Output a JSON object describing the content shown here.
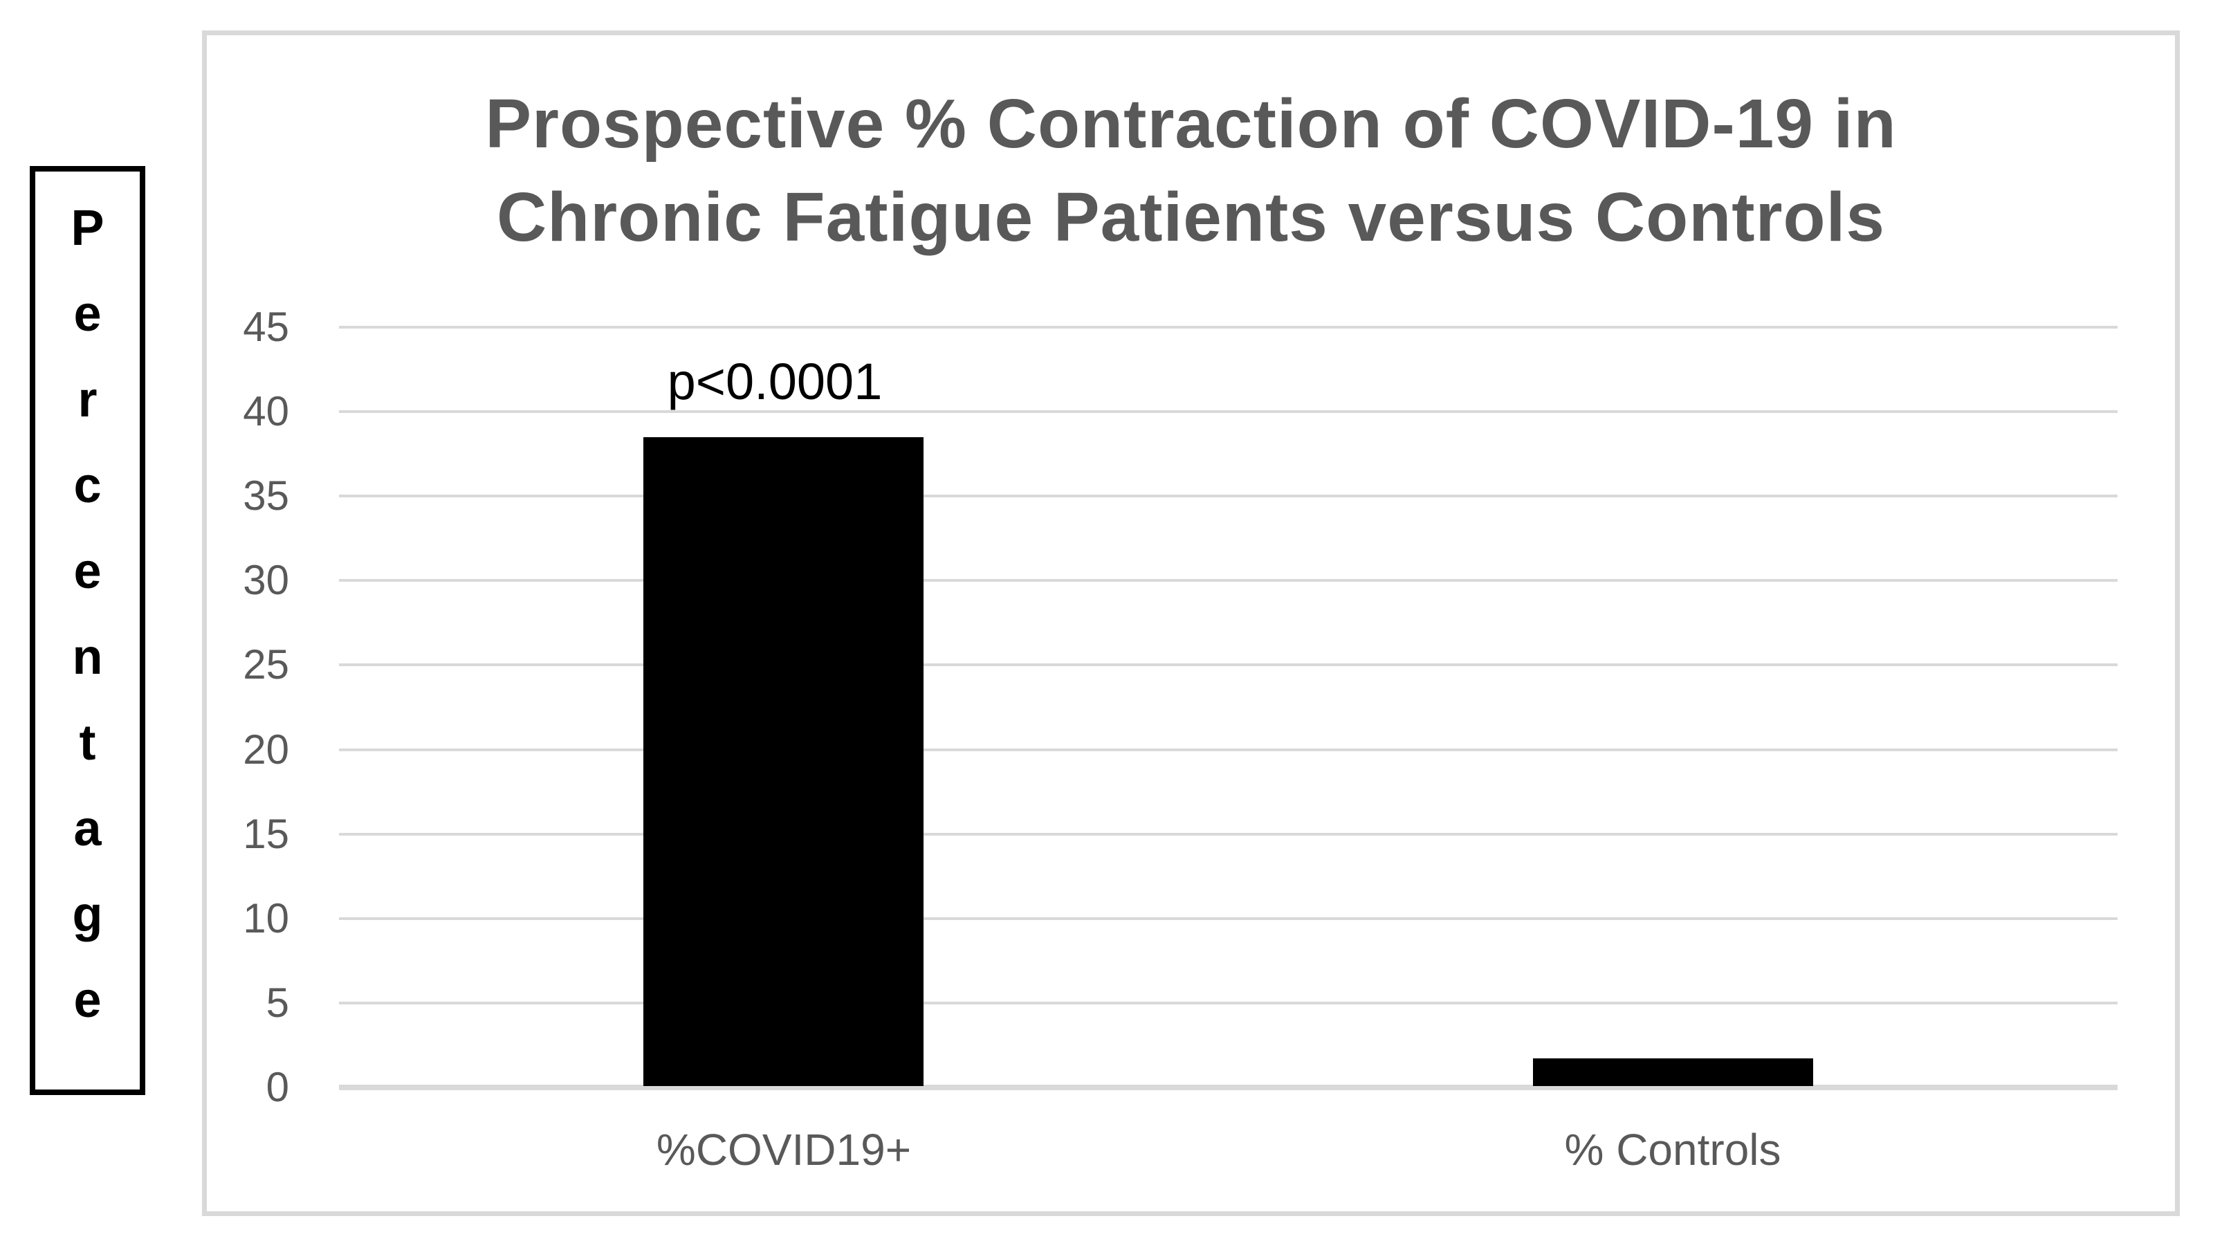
{
  "title_lines": [
    "Prospective % Contraction of COVID-19 in",
    "Chronic Fatigue Patients versus Controls"
  ],
  "colors": {
    "title_text": "#595959",
    "axis_text": "#595959",
    "gridline": "#d9d9d9",
    "frame_border": "#d9d9d9",
    "bar": "#000000",
    "annotation_text": "#000000",
    "ylabel_text": "#000000",
    "background": "#ffffff"
  },
  "chart_data": {
    "type": "bar",
    "title": "Prospective % Contraction of COVID-19 in Chronic Fatigue Patients versus Controls",
    "categories": [
      "%COVID19+",
      "% Controls"
    ],
    "values": [
      38.5,
      1.7
    ],
    "xlabel": "",
    "ylabel": "Percentage",
    "ylim": [
      0,
      45
    ],
    "yticks": [
      0,
      5,
      10,
      15,
      20,
      25,
      30,
      35,
      40,
      45
    ],
    "grid": true,
    "legend": "none",
    "bar_color": "#000000",
    "annotations": [
      {
        "text": "p<0.0001",
        "category": "%COVID19+",
        "position": "above-bar"
      }
    ]
  }
}
